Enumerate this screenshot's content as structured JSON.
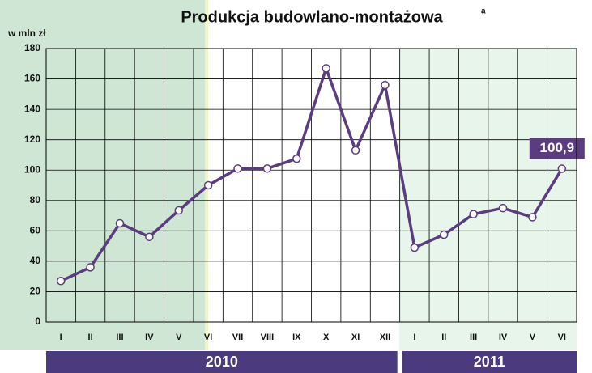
{
  "chart_data": {
    "type": "line",
    "title": "Produkcja budowlano-montażowa",
    "title_note": "a",
    "y_label": "w mln zł",
    "groups": [
      {
        "label": "2010",
        "categories": [
          "I",
          "II",
          "III",
          "IV",
          "V",
          "VI",
          "VII",
          "VIII",
          "IX",
          "X",
          "XI",
          "XII"
        ],
        "values": [
          27,
          36,
          65,
          56,
          73.5,
          90,
          101,
          101,
          107.5,
          167,
          113,
          156
        ]
      },
      {
        "label": "2011",
        "categories": [
          "I",
          "II",
          "III",
          "IV",
          "V",
          "VI"
        ],
        "values": [
          49,
          57.5,
          71,
          75,
          69,
          100.9
        ],
        "value_labels": [
          null,
          null,
          null,
          null,
          null,
          "100,9"
        ]
      }
    ],
    "color": "#5b3c7e",
    "ylim": [
      0,
      180
    ],
    "yticks": [
      0,
      20,
      40,
      60,
      80,
      100,
      120,
      140,
      160,
      180
    ],
    "grid": true
  }
}
